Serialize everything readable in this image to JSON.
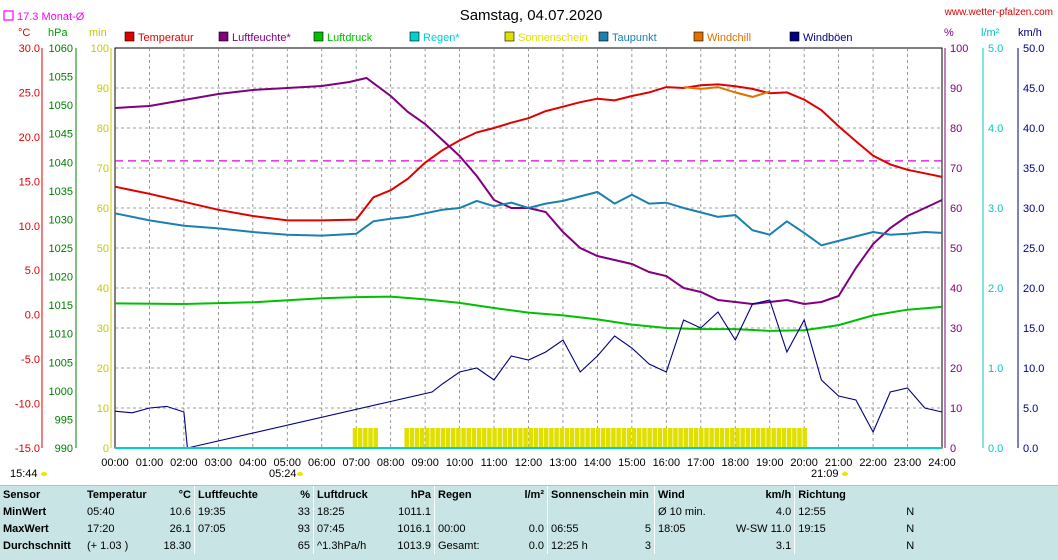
{
  "title": "Samstag, 04.07.2020",
  "site": "www.wetter-pfalzen.com",
  "month_avg": "17.3 Monat-Ø",
  "units": {
    "temp": "°C",
    "press": "hPa",
    "min": "min",
    "pct": "%",
    "rain": "l/m²",
    "wind": "km/h"
  },
  "sunrise": "05:24",
  "sunset": "21:09",
  "updated": "15:44",
  "legend": [
    {
      "label": "Temperatur",
      "color": "#e00000"
    },
    {
      "label": "Luftfeuchte*",
      "color": "#800080"
    },
    {
      "label": "Luftdruck",
      "color": "#00c000"
    },
    {
      "label": "Regen*",
      "color": "#00d0d0"
    },
    {
      "label": "Sonnenschein",
      "color": "#e0e000"
    },
    {
      "label": "Taupunkt",
      "color": "#1a80b0"
    },
    {
      "label": "Windchill",
      "color": "#e07000"
    },
    {
      "label": "Windböen",
      "color": "#000080"
    }
  ],
  "chart_data": {
    "type": "line",
    "x_ticks": [
      "00:00",
      "01:00",
      "02:00",
      "03:00",
      "04:00",
      "05:00",
      "06:00",
      "07:00",
      "08:00",
      "09:00",
      "10:00",
      "11:00",
      "12:00",
      "13:00",
      "14:00",
      "15:00",
      "16:00",
      "17:00",
      "18:00",
      "19:00",
      "20:00",
      "21:00",
      "22:00",
      "23:00",
      "24:00"
    ],
    "axes": {
      "temp": {
        "range": [
          -15,
          30
        ],
        "ticks": [
          "30.0",
          "25.0",
          "20.0",
          "15.0",
          "10.0",
          "5.0",
          "0.0",
          "-5.0",
          "-10.0",
          "-15.0"
        ]
      },
      "pressure": {
        "range": [
          990,
          1060
        ],
        "ticks": [
          "1060",
          "1055",
          "1050",
          "1045",
          "1040",
          "1035",
          "1030",
          "1025",
          "1020",
          "1015",
          "1010",
          "1005",
          "1000",
          "995",
          "990"
        ]
      },
      "minutes": {
        "range": [
          0,
          100
        ],
        "ticks": [
          "100",
          "90",
          "80",
          "70",
          "60",
          "50",
          "40",
          "30",
          "20",
          "10",
          "0"
        ]
      },
      "humidity": {
        "range": [
          0,
          100
        ],
        "ticks": [
          "100",
          "90",
          "80",
          "70",
          "60",
          "50",
          "40",
          "30",
          "20",
          "10",
          "0"
        ]
      },
      "rain": {
        "range": [
          0,
          5
        ],
        "ticks": [
          "5.0",
          "4.0",
          "3.0",
          "2.0",
          "1.0",
          "0.0"
        ]
      },
      "wind": {
        "range": [
          0,
          50
        ],
        "ticks": [
          "50.0",
          "45.0",
          "40.0",
          "35.0",
          "30.0",
          "25.0",
          "20.0",
          "15.0",
          "10.0",
          "5.0",
          "0.0"
        ]
      }
    },
    "month_avg_temp": 17.3,
    "series": [
      {
        "name": "Temperatur",
        "axis": "temp",
        "color": "#e00000",
        "x": [
          0,
          1,
          2,
          3,
          4,
          5,
          6,
          7,
          7.5,
          8,
          8.5,
          9,
          9.5,
          10,
          10.5,
          11,
          11.5,
          12,
          12.5,
          13,
          13.5,
          14,
          14.5,
          15,
          15.5,
          16,
          16.5,
          17,
          17.5,
          18,
          18.5,
          19,
          19.5,
          20,
          20.5,
          21,
          21.5,
          22,
          22.5,
          23,
          23.5,
          24
        ],
        "y": [
          14.4,
          13.6,
          12.7,
          11.8,
          11.1,
          10.6,
          10.6,
          10.7,
          13.2,
          14.0,
          15.3,
          17.1,
          18.5,
          19.6,
          20.5,
          21.0,
          21.6,
          22.1,
          22.9,
          23.4,
          23.9,
          24.3,
          24.1,
          24.6,
          25.0,
          25.6,
          25.5,
          25.8,
          25.9,
          25.7,
          25.4,
          24.9,
          25.0,
          24.2,
          23.0,
          21.2,
          19.5,
          17.9,
          16.9,
          16.3,
          15.9,
          15.5
        ]
      },
      {
        "name": "Luftfeuchte*",
        "axis": "humidity",
        "color": "#800080",
        "x": [
          0,
          1,
          2,
          3,
          4,
          5,
          6,
          6.8,
          7.3,
          8,
          8.5,
          9,
          9.5,
          10,
          10.5,
          11,
          11.5,
          12,
          12.5,
          13,
          13.5,
          14,
          14.5,
          15,
          15.5,
          16,
          16.5,
          17,
          17.5,
          18,
          18.5,
          19,
          19.5,
          20,
          20.5,
          21,
          21.5,
          22,
          22.5,
          23,
          23.5,
          24
        ],
        "y": [
          85,
          85.5,
          87,
          88.5,
          89.5,
          90,
          90.5,
          91.5,
          92.5,
          88,
          84,
          81,
          77,
          73,
          68,
          62,
          60,
          60,
          59,
          54,
          50,
          48,
          47,
          46,
          44,
          43,
          40,
          39,
          37,
          36.5,
          36,
          36.5,
          37,
          36,
          36.5,
          38,
          45,
          51,
          55,
          58,
          60,
          62
        ]
      },
      {
        "name": "Luftdruck",
        "axis": "pressure",
        "color": "#00c000",
        "x": [
          0,
          2,
          4,
          6,
          7,
          8,
          9,
          10,
          11,
          12,
          13,
          14,
          15,
          16,
          17,
          18,
          19,
          20,
          21,
          22,
          23,
          24
        ],
        "y": [
          1015.3,
          1015.2,
          1015.5,
          1016.2,
          1016.4,
          1016.5,
          1016.0,
          1015.4,
          1014.5,
          1013.7,
          1013.2,
          1012.5,
          1011.6,
          1011.0,
          1010.8,
          1010.8,
          1010.5,
          1010.6,
          1011.5,
          1013.2,
          1014.2,
          1014.7
        ]
      },
      {
        "name": "Taupunkt",
        "axis": "temp",
        "color": "#1a80b0",
        "x": [
          0,
          1,
          2,
          3,
          4,
          5,
          6,
          7,
          7.5,
          8,
          8.5,
          9,
          9.5,
          10,
          10.5,
          11,
          11.5,
          12,
          12.5,
          13,
          13.5,
          14,
          14.5,
          15,
          15.5,
          16,
          16.5,
          17,
          17.5,
          18,
          18.5,
          19,
          19.5,
          20,
          20.5,
          21,
          21.5,
          22,
          22.5,
          23,
          23.5,
          24
        ],
        "y": [
          11.4,
          10.6,
          10.0,
          9.7,
          9.3,
          9.0,
          8.9,
          9.1,
          10.5,
          10.8,
          11.0,
          11.4,
          11.8,
          12.0,
          12.8,
          12.2,
          12.6,
          12.0,
          12.5,
          12.8,
          13.3,
          13.8,
          12.5,
          13.5,
          12.5,
          12.6,
          12.0,
          11.5,
          11.0,
          11.2,
          9.5,
          9.0,
          10.5,
          9.2,
          7.8,
          8.3,
          8.8,
          9.3,
          9.0,
          9.1,
          9.3,
          9.2
        ]
      },
      {
        "name": "Windchill",
        "axis": "temp",
        "color": "#e07000",
        "x": [
          16.5,
          17,
          17.5,
          18,
          18.5,
          19
        ],
        "y": [
          25.6,
          25.4,
          25.6,
          25.0,
          24.5,
          25.1
        ]
      },
      {
        "name": "Windböen",
        "axis": "wind",
        "color": "#000080",
        "x": [
          0,
          0.5,
          1,
          1.5,
          2,
          2.1,
          9.2,
          9.5,
          10,
          10.5,
          11,
          11.5,
          12,
          12.5,
          13,
          13.5,
          14,
          14.5,
          15,
          15.5,
          16,
          16.5,
          17,
          17.5,
          18,
          18.5,
          19,
          19.5,
          20,
          20.5,
          21,
          21.5,
          22,
          22.5,
          23,
          23.5,
          24
        ],
        "y": [
          4.6,
          4.4,
          5.0,
          5.2,
          4.5,
          0,
          7.0,
          8.0,
          9.5,
          10.0,
          8.5,
          11.5,
          11.0,
          12.0,
          13.5,
          9.5,
          11.5,
          14.0,
          12.5,
          10.5,
          9.5,
          16.0,
          15.0,
          17.0,
          13.5,
          18.0,
          18.5,
          12.0,
          16.0,
          8.5,
          6.5,
          6.0,
          2.0,
          7.0,
          7.5,
          5.0,
          4.5
        ]
      },
      {
        "name": "Sonnenschein",
        "axis": "minutes",
        "color": "#e0e000",
        "type": "bar",
        "x": [
          6.9,
          7.05,
          7.2,
          7.35,
          7.5,
          8.4,
          8.55,
          8.7,
          8.85,
          9.0,
          9.15,
          9.3,
          9.45,
          9.6,
          9.75,
          9.9,
          10.05,
          10.2,
          10.35,
          10.5,
          10.65,
          10.8,
          10.95,
          11.1,
          11.25,
          11.4,
          11.55,
          11.7,
          11.85,
          12.0,
          12.15,
          12.3,
          12.45,
          12.6,
          12.75,
          12.9,
          13.05,
          13.2,
          13.35,
          13.5,
          13.65,
          13.8,
          13.95,
          14.1,
          14.25,
          14.4,
          14.55,
          14.7,
          14.85,
          15.0,
          15.15,
          15.3,
          15.45,
          15.6,
          15.75,
          15.9,
          16.05,
          16.2,
          16.35,
          16.5,
          16.65,
          16.8,
          16.95,
          17.1,
          17.25,
          17.4,
          17.55,
          17.7,
          17.85,
          18.0,
          18.15,
          18.3,
          18.45,
          18.6,
          18.75,
          18.9,
          19.05,
          19.2,
          19.35,
          19.5,
          19.65,
          19.8,
          19.95
        ],
        "y": [
          5,
          5,
          5,
          5,
          5,
          5,
          5,
          5,
          5,
          5,
          5,
          5,
          5,
          5,
          5,
          5,
          5,
          5,
          5,
          5,
          5,
          5,
          5,
          5,
          5,
          5,
          5,
          5,
          5,
          5,
          5,
          5,
          5,
          5,
          5,
          5,
          5,
          5,
          5,
          5,
          5,
          5,
          5,
          5,
          5,
          5,
          5,
          5,
          5,
          5,
          5,
          5,
          5,
          5,
          5,
          5,
          5,
          5,
          5,
          5,
          5,
          5,
          5,
          5,
          5,
          5,
          5,
          5,
          5,
          5,
          5,
          5,
          5,
          5,
          5,
          5,
          5,
          5,
          5,
          5,
          5,
          5,
          5
        ]
      },
      {
        "name": "Regen*",
        "axis": "rain",
        "color": "#00d0d0",
        "x": [
          0,
          24
        ],
        "y": [
          0,
          0
        ]
      }
    ]
  },
  "stats": {
    "header": [
      "Sensor",
      "Temperatur",
      "°C",
      "Luftfeuchte",
      "%",
      "Luftdruck",
      "hPa",
      "Regen",
      "l/m²",
      "Sonnenschein min",
      "Wind",
      "km/h",
      "Richtung"
    ],
    "rows": [
      [
        "MinWert",
        "05:40",
        "10.6",
        "19:35",
        "33",
        "18:25",
        "1011.1",
        "",
        "",
        "",
        "Ø 10 min.",
        "4.0",
        "12:55",
        "N"
      ],
      [
        "MaxWert",
        "17:20",
        "26.1",
        "07:05",
        "93",
        "07:45",
        "1016.1",
        "00:00",
        "0.0",
        "06:55",
        "5",
        "18:05",
        "W-SW 11.0",
        "19:15",
        "N"
      ],
      [
        "Durchschnitt",
        "(+ 1.03 )",
        "18.30",
        "",
        "65",
        "^1.3hPa/h",
        "1013.9",
        "Gesamt:",
        "0.0",
        "12:25 h",
        "3",
        "",
        "3.1",
        "",
        "N"
      ]
    ]
  }
}
